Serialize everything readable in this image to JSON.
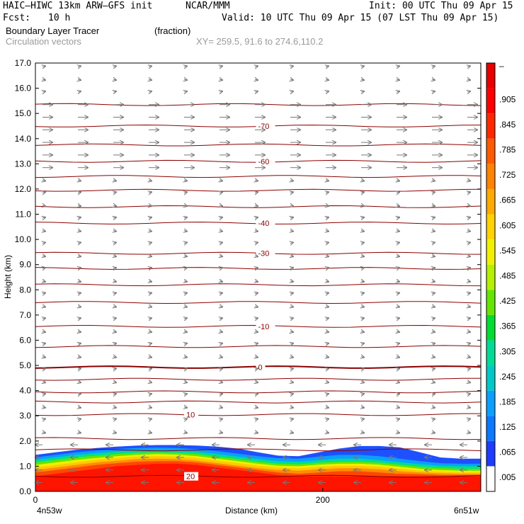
{
  "header": {
    "model": "HAIC–HIWC 13km ARW–GFS init",
    "org": "NCAR/MMM",
    "init": "Init: 00 UTC Thu 09 Apr 15",
    "fcst_label": "Fcst:",
    "fcst_value": "10 h",
    "valid": "Valid: 10 UTC Thu 09 Apr 15 (07 LST Thu 09 Apr 15)",
    "field": "Boundary Layer Tracer",
    "field_units": "(fraction)",
    "vectors": "Circulation vectors",
    "xy": "XY= 259.5, 91.6 to 274.6,110.2"
  },
  "chart_data": {
    "type": "heatmap",
    "title": "Boundary Layer Tracer",
    "xlabel": "Distance (km)",
    "ylabel": "Height (km)",
    "xlim": [
      0,
      310
    ],
    "ylim": [
      0,
      17
    ],
    "x_ticks": [
      0,
      200
    ],
    "x_tick_labels": [
      "0",
      "200"
    ],
    "x_end_labels": [
      "4n53w",
      "6n51w"
    ],
    "y_ticks": [
      0,
      1,
      2,
      3,
      4,
      5,
      6,
      7,
      8,
      9,
      10,
      11,
      12,
      13,
      14,
      15,
      16,
      17
    ],
    "y_tick_labels": [
      "0.0",
      "1.0",
      "2.0",
      "3.0",
      "4.0",
      "5.0",
      "6.0",
      "7.0",
      "8.0",
      "9.0",
      "10.0",
      "11.0",
      "12.0",
      "13.0",
      "14.0",
      "15.0",
      "16.0",
      "17.0"
    ],
    "colorbar": {
      "labels": [
        ".005",
        ".065",
        ".125",
        ".185",
        ".245",
        ".305",
        ".365",
        ".425",
        ".485",
        ".545",
        ".605",
        ".665",
        ".725",
        ".785",
        ".845",
        ".905"
      ],
      "top_label": "–",
      "colors": [
        "#ffffff",
        "#1e3cff",
        "#0a78ff",
        "#0aa0ff",
        "#00c8c8",
        "#00dc96",
        "#00dc32",
        "#64e600",
        "#b4f000",
        "#f0f000",
        "#ffd200",
        "#ffaa00",
        "#ff8200",
        "#ff5a00",
        "#ff2800",
        "#ff0000",
        "#e60000"
      ]
    },
    "tracer_layers": [
      {
        "level": 0.965,
        "color": "#ff1400",
        "top_km": [
          0.6,
          0.7,
          0.8,
          0.9,
          1.0,
          1.05,
          1.1,
          1.1,
          1.05,
          0.95,
          0.85,
          0.75,
          0.65,
          0.6,
          0.6,
          0.6,
          0.6,
          0.6,
          0.6,
          0.6,
          0.6,
          0.6,
          0.6
        ]
      },
      {
        "level": 0.845,
        "color": "#ff4600",
        "top_km": [
          0.75,
          0.85,
          0.95,
          1.05,
          1.12,
          1.18,
          1.2,
          1.2,
          1.15,
          1.05,
          0.95,
          0.85,
          0.75,
          0.7,
          0.75,
          0.8,
          0.8,
          0.75,
          0.7,
          0.68,
          0.65,
          0.65,
          0.65
        ]
      },
      {
        "level": 0.725,
        "color": "#ff8c00",
        "top_km": [
          0.85,
          0.95,
          1.05,
          1.15,
          1.22,
          1.28,
          1.3,
          1.28,
          1.22,
          1.12,
          1.02,
          0.92,
          0.85,
          0.82,
          0.88,
          0.92,
          0.92,
          0.88,
          0.8,
          0.75,
          0.72,
          0.7,
          0.7
        ]
      },
      {
        "level": 0.605,
        "color": "#ffc800",
        "top_km": [
          0.95,
          1.05,
          1.15,
          1.25,
          1.32,
          1.38,
          1.4,
          1.38,
          1.32,
          1.22,
          1.12,
          1.02,
          0.95,
          0.92,
          0.98,
          1.02,
          1.02,
          0.98,
          0.9,
          0.82,
          0.78,
          0.75,
          0.75
        ]
      },
      {
        "level": 0.485,
        "color": "#f0f000",
        "top_km": [
          1.05,
          1.15,
          1.25,
          1.33,
          1.4,
          1.45,
          1.48,
          1.46,
          1.4,
          1.3,
          1.2,
          1.1,
          1.02,
          1.0,
          1.06,
          1.1,
          1.1,
          1.06,
          0.98,
          0.9,
          0.85,
          0.82,
          0.82
        ]
      },
      {
        "level": 0.365,
        "color": "#64e600",
        "top_km": [
          1.15,
          1.25,
          1.35,
          1.42,
          1.48,
          1.53,
          1.55,
          1.53,
          1.48,
          1.38,
          1.28,
          1.18,
          1.1,
          1.08,
          1.14,
          1.18,
          1.18,
          1.14,
          1.06,
          0.98,
          0.93,
          0.9,
          0.9
        ]
      },
      {
        "level": 0.245,
        "color": "#00dc96",
        "top_km": [
          1.25,
          1.35,
          1.45,
          1.52,
          1.58,
          1.62,
          1.64,
          1.62,
          1.57,
          1.48,
          1.38,
          1.28,
          1.2,
          1.18,
          1.24,
          1.3,
          1.3,
          1.24,
          1.16,
          1.08,
          1.02,
          1.0,
          1.0
        ]
      },
      {
        "level": 0.125,
        "color": "#0aa0ff",
        "top_km": [
          1.35,
          1.45,
          1.55,
          1.62,
          1.68,
          1.72,
          1.74,
          1.72,
          1.68,
          1.6,
          1.5,
          1.4,
          1.32,
          1.3,
          1.38,
          1.45,
          1.45,
          1.4,
          1.3,
          1.2,
          1.12,
          1.1,
          1.1
        ]
      },
      {
        "level": 0.065,
        "color": "#1e50ff",
        "top_km": [
          1.45,
          1.55,
          1.65,
          1.72,
          1.78,
          1.82,
          1.84,
          1.84,
          1.82,
          1.78,
          1.7,
          1.55,
          1.42,
          1.4,
          1.55,
          1.7,
          1.8,
          1.8,
          1.75,
          1.55,
          1.35,
          1.3,
          1.3
        ]
      }
    ],
    "temperature_contours": [
      {
        "label": "20",
        "height_km": 0.6,
        "label_x_km": 105
      },
      {
        "label": "10",
        "height_km": 3.05,
        "label_x_km": 105
      },
      {
        "label": "0",
        "height_km": 4.93,
        "label_x_km": 155
      },
      {
        "label": "-10",
        "height_km": 6.55,
        "label_x_km": 155
      },
      {
        "label": "-30",
        "height_km": 9.45,
        "label_x_km": 155
      },
      {
        "label": "-40",
        "height_km": 10.65,
        "label_x_km": 155
      },
      {
        "label": "-60",
        "height_km": 13.1,
        "label_x_km": 155
      },
      {
        "label": "-70",
        "height_km": 14.5,
        "label_x_km": 155
      }
    ],
    "unlabeled_contour_heights_km": [
      1.65,
      2.1,
      3.55,
      3.95,
      4.45,
      5.75,
      7.5,
      8.2,
      8.85,
      11.3,
      11.95,
      12.5,
      13.75,
      15.35
    ]
  }
}
